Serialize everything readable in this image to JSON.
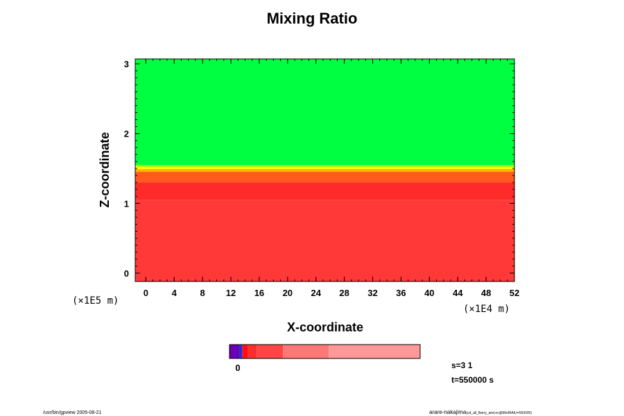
{
  "chart_data": {
    "type": "heatmap",
    "title": "Mixing Ratio",
    "xlabel": "X-coordinate",
    "ylabel": "Z-coordinate",
    "x_unit": "(×1E4 m)",
    "y_unit": "(×1E5 m)",
    "xlim": [
      -1.5,
      52
    ],
    "ylim": [
      -0.12,
      3.07
    ],
    "x_ticks": [
      0,
      4,
      8,
      12,
      16,
      20,
      24,
      28,
      32,
      36,
      40,
      44,
      48,
      52
    ],
    "y_ticks": [
      0,
      1,
      2,
      3
    ],
    "layers": [
      {
        "z_from": 1.55,
        "z_to": 3.07,
        "color": "#00ff40"
      },
      {
        "z_from": 1.52,
        "z_to": 1.55,
        "color": "#aaff00"
      },
      {
        "z_from": 1.49,
        "z_to": 1.52,
        "color": "#ffff00"
      },
      {
        "z_from": 1.45,
        "z_to": 1.49,
        "color": "#ffb000"
      },
      {
        "z_from": 1.3,
        "z_to": 1.45,
        "color": "#ff5a1e"
      },
      {
        "z_from": 1.05,
        "z_to": 1.3,
        "color": "#ff2a2a"
      },
      {
        "z_from": -0.12,
        "z_to": 1.05,
        "color": "#ff3838"
      }
    ],
    "colorbar": {
      "tick_label": "0",
      "segments": [
        {
          "color": "#6a00b0",
          "weight": 1.0
        },
        {
          "color": "#2030e0",
          "weight": 0.3
        },
        {
          "color": "#ff1010",
          "weight": 0.6
        },
        {
          "color": "#ff2e2e",
          "weight": 0.9
        },
        {
          "color": "#ff4545",
          "weight": 2.7
        },
        {
          "color": "#ff7878",
          "weight": 4.7
        },
        {
          "color": "#ff9898",
          "weight": 9.4
        }
      ]
    }
  },
  "status": {
    "step": "s=3 1",
    "time": "t=550000 s"
  },
  "footer": {
    "left": "/usr/bin/gpview 2005-08-21",
    "right": "arare-nakajima",
    "right_small": "(cd_all_Barry_and.nc@MixRtAll,t=550000)"
  }
}
